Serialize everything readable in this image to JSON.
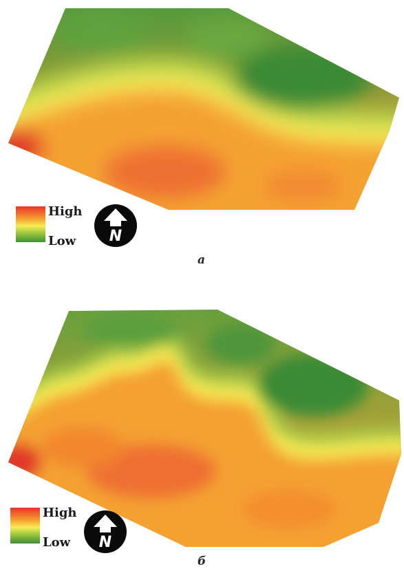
{
  "colors": {
    "high": "#e8342a",
    "mid_high": "#f5a030",
    "mid": "#f6ee55",
    "mid_low": "#8fbf3a",
    "low": "#3f8f3a"
  },
  "maps": [
    {
      "label": "а",
      "legend": {
        "high_label": "High",
        "low_label": "Low"
      },
      "north_arrow": {
        "icon": "north-arrow-icon",
        "letter": "N"
      }
    },
    {
      "label": "б",
      "legend": {
        "high_label": "High",
        "low_label": "Low"
      },
      "north_arrow": {
        "icon": "north-arrow-icon",
        "letter": "N"
      }
    }
  ]
}
